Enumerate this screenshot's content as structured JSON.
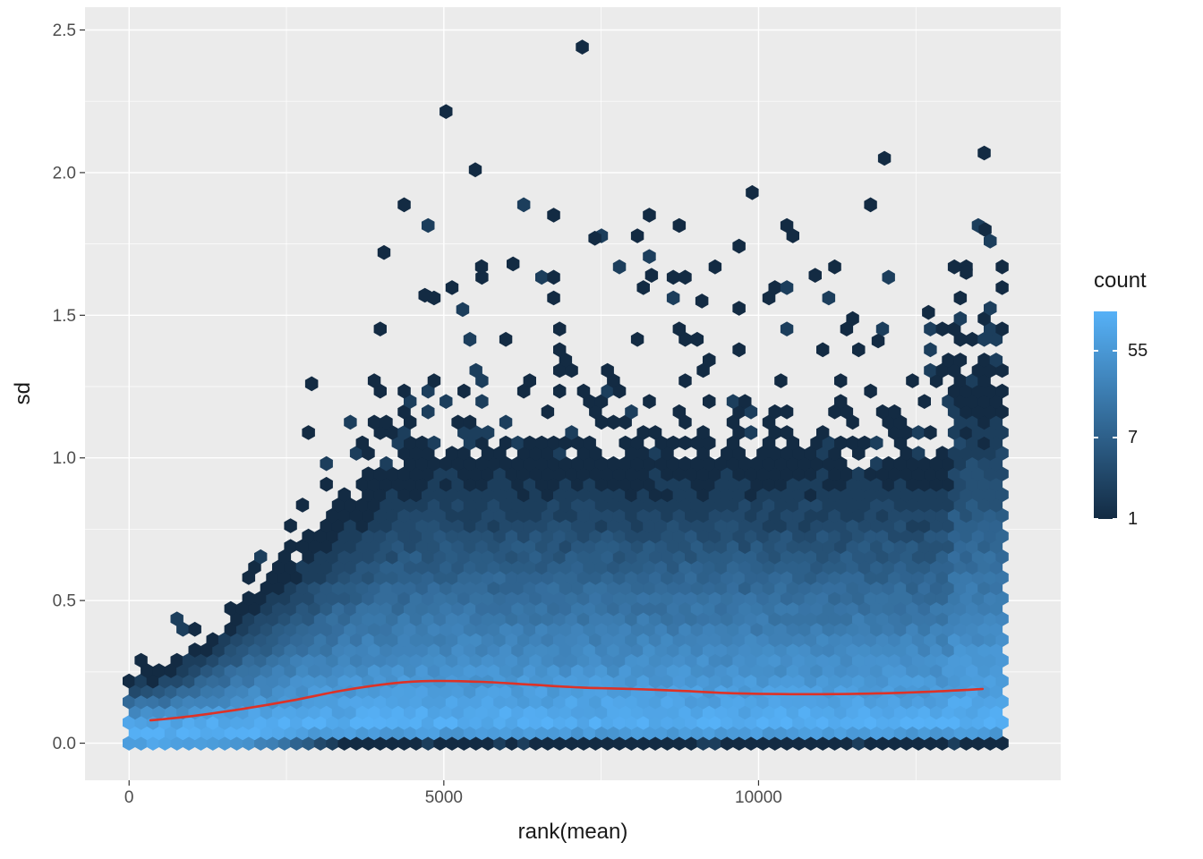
{
  "chart_data": {
    "type": "hexbin",
    "title": "",
    "xlabel": "rank(mean)",
    "ylabel": "sd",
    "x_tick_values": [
      0,
      5000,
      10000
    ],
    "x_tick_labels": [
      "0",
      "5000",
      "10000"
    ],
    "x_minor_ticks": [
      2500,
      7500,
      12500
    ],
    "y_tick_values": [
      0,
      0.5,
      1.0,
      1.5,
      2.0,
      2.5
    ],
    "y_tick_labels": [
      "0.0",
      "0.5",
      "1.0",
      "1.5",
      "2.0",
      "2.5"
    ],
    "y_minor_ticks": [
      0.25,
      0.75,
      1.25,
      1.75,
      2.25
    ],
    "xlim": [
      -700,
      14800
    ],
    "ylim": [
      -0.13,
      2.58
    ],
    "panel_bg": "#EBEBEB",
    "grid_color": "#FFFFFF",
    "tick_color": "#333333",
    "tick_label_color": "#4D4D4D",
    "axis_title_color": "#1A1A1A",
    "legend": {
      "title": "count",
      "max": 140,
      "low_color": "#132B43",
      "high_color": "#56B1F7",
      "breaks": [
        {
          "value": 55,
          "label": "55"
        },
        {
          "value": 7,
          "label": "7"
        },
        {
          "value": 1,
          "label": "1"
        }
      ]
    },
    "smooth_line": {
      "color": "#DD3227",
      "width": 2.6,
      "points": [
        [
          340,
          0.08
        ],
        [
          1000,
          0.095
        ],
        [
          1800,
          0.12
        ],
        [
          2600,
          0.15
        ],
        [
          3400,
          0.185
        ],
        [
          4200,
          0.21
        ],
        [
          4800,
          0.218
        ],
        [
          5600,
          0.215
        ],
        [
          6400,
          0.205
        ],
        [
          7200,
          0.195
        ],
        [
          8000,
          0.19
        ],
        [
          8800,
          0.183
        ],
        [
          9600,
          0.175
        ],
        [
          10400,
          0.172
        ],
        [
          11200,
          0.172
        ],
        [
          12000,
          0.175
        ],
        [
          12800,
          0.181
        ],
        [
          13560,
          0.19
        ]
      ]
    },
    "hexbin_model": {
      "seed": 1337,
      "x_max": 13900,
      "hex_dx": 190,
      "mode_sd": 0.06,
      "count_max": 130,
      "lower_sigma": 0.09,
      "lower_sigma_min": 0.028,
      "lower_sigma_x_scale": 3500,
      "tau_min": 0.035,
      "tau_max": 0.19,
      "tau_x_scale": 5000,
      "right_edge_x": 13100,
      "right_edge_tau_boost": 0.05,
      "sprinkle_prob": 0.035,
      "sprinkle_reach": 9.5,
      "sprinkle_sd_cap": 2.25,
      "count_jitter": [
        0.7,
        1.3
      ]
    },
    "outliers": [
      [
        7200,
        2.44,
        1
      ],
      [
        5500,
        2.01,
        1
      ],
      [
        12000,
        2.05,
        1
      ],
      [
        9900,
        1.93,
        1
      ],
      [
        4050,
        1.72,
        1
      ],
      [
        13600,
        1.8,
        1
      ],
      [
        13680,
        1.76,
        2
      ],
      [
        7400,
        1.77,
        1
      ],
      [
        6100,
        1.68,
        1
      ],
      [
        5600,
        1.67,
        1
      ],
      [
        8300,
        1.64,
        1
      ],
      [
        10900,
        1.64,
        1
      ],
      [
        12700,
        1.51,
        1
      ],
      [
        9100,
        1.55,
        1
      ],
      [
        4700,
        1.57,
        1
      ],
      [
        13300,
        1.65,
        1
      ],
      [
        2900,
        1.26,
        1
      ],
      [
        11900,
        1.41,
        1
      ],
      [
        5300,
        1.52,
        2
      ]
    ]
  }
}
